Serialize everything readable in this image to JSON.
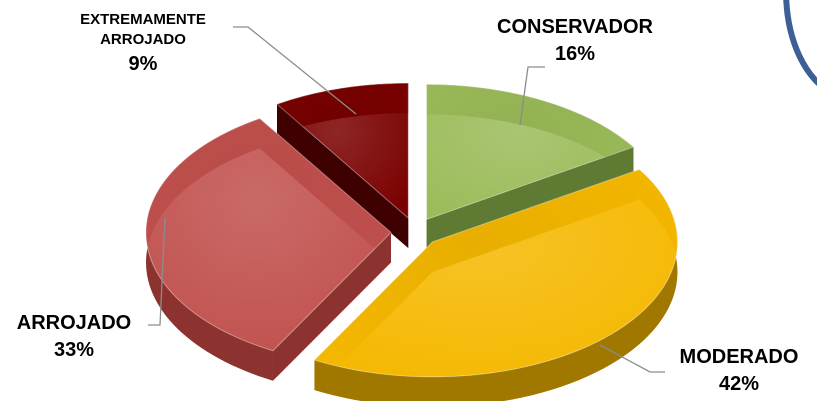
{
  "chart_data": {
    "type": "pie",
    "style": "3d-exploded",
    "legend": "none",
    "slices": [
      {
        "label": "CONSERVADOR",
        "value": 16,
        "value_label": "16%",
        "color": "#9bbb59",
        "side_color": "#5f7a32"
      },
      {
        "label": "MODERADO",
        "value": 42,
        "value_label": "42%",
        "color": "#f5b800",
        "side_color": "#a07800"
      },
      {
        "label": "ARROJADO",
        "value": 33,
        "value_label": "33%",
        "color": "#c0504d",
        "side_color": "#8c3330"
      },
      {
        "label_line1": "EXTREMAMENTE",
        "label_line2": "ARROJADO",
        "value": 9,
        "value_label": "9%",
        "color": "#7a0000",
        "side_color": "#3e0000"
      }
    ]
  },
  "decor": {
    "circle_color": "#3b5f96"
  }
}
